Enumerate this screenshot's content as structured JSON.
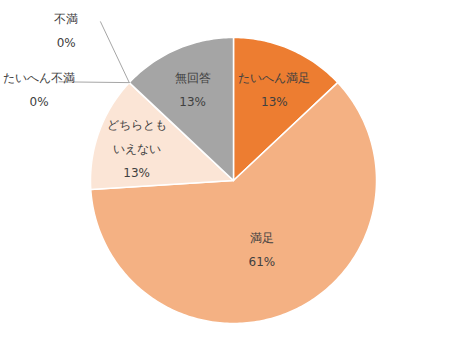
{
  "chart_data": {
    "type": "pie",
    "categories": [
      "たいへん満足",
      "満足",
      "どちらとも\nいえない",
      "不満",
      "たいへん不満",
      "無回答"
    ],
    "values": [
      13,
      61,
      13,
      0,
      0,
      13
    ],
    "value_labels": [
      "13%",
      "61%",
      "13%",
      "0%",
      "0%",
      "13%"
    ],
    "colors": [
      "#ed7d31",
      "#f4b183",
      "#fbe5d6",
      "#c55a11",
      "#843c0c",
      "#a5a5a5"
    ],
    "data_labels": true
  }
}
